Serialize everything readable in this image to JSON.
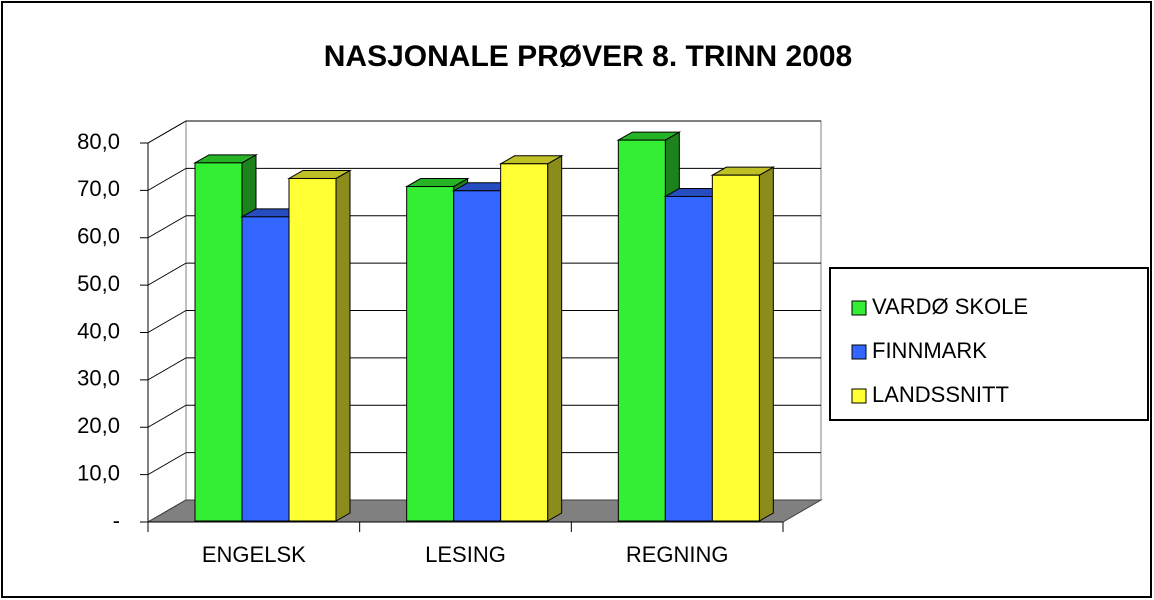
{
  "chart_data": {
    "type": "bar3d",
    "title": "NASJONALE PRØVER 8. TRINN 2008",
    "categories": [
      "ENGELSK",
      "LESING",
      "REGNING"
    ],
    "series": [
      {
        "name": "VARDØ SKOLE",
        "color": "#33ee33",
        "values": [
          75.6,
          70.6,
          80.4
        ]
      },
      {
        "name": "FINNMARK",
        "color": "#3366ff",
        "values": [
          64.2,
          69.7,
          68.5
        ]
      },
      {
        "name": "LANDSSNITT",
        "color": "#ffff33",
        "values": [
          72.3,
          75.4,
          73.0
        ]
      }
    ],
    "ylim": [
      0,
      80
    ],
    "yticks": [
      {
        "value": 0,
        "label": "-"
      },
      {
        "value": 10,
        "label": "10,0"
      },
      {
        "value": 20,
        "label": "20,0"
      },
      {
        "value": 30,
        "label": "30,0"
      },
      {
        "value": 40,
        "label": "40,0"
      },
      {
        "value": 50,
        "label": "50,0"
      },
      {
        "value": 60,
        "label": "60,0"
      },
      {
        "value": 70,
        "label": "70,0"
      },
      {
        "value": 80,
        "label": "80,0"
      }
    ],
    "grid": true,
    "legend": "right"
  }
}
